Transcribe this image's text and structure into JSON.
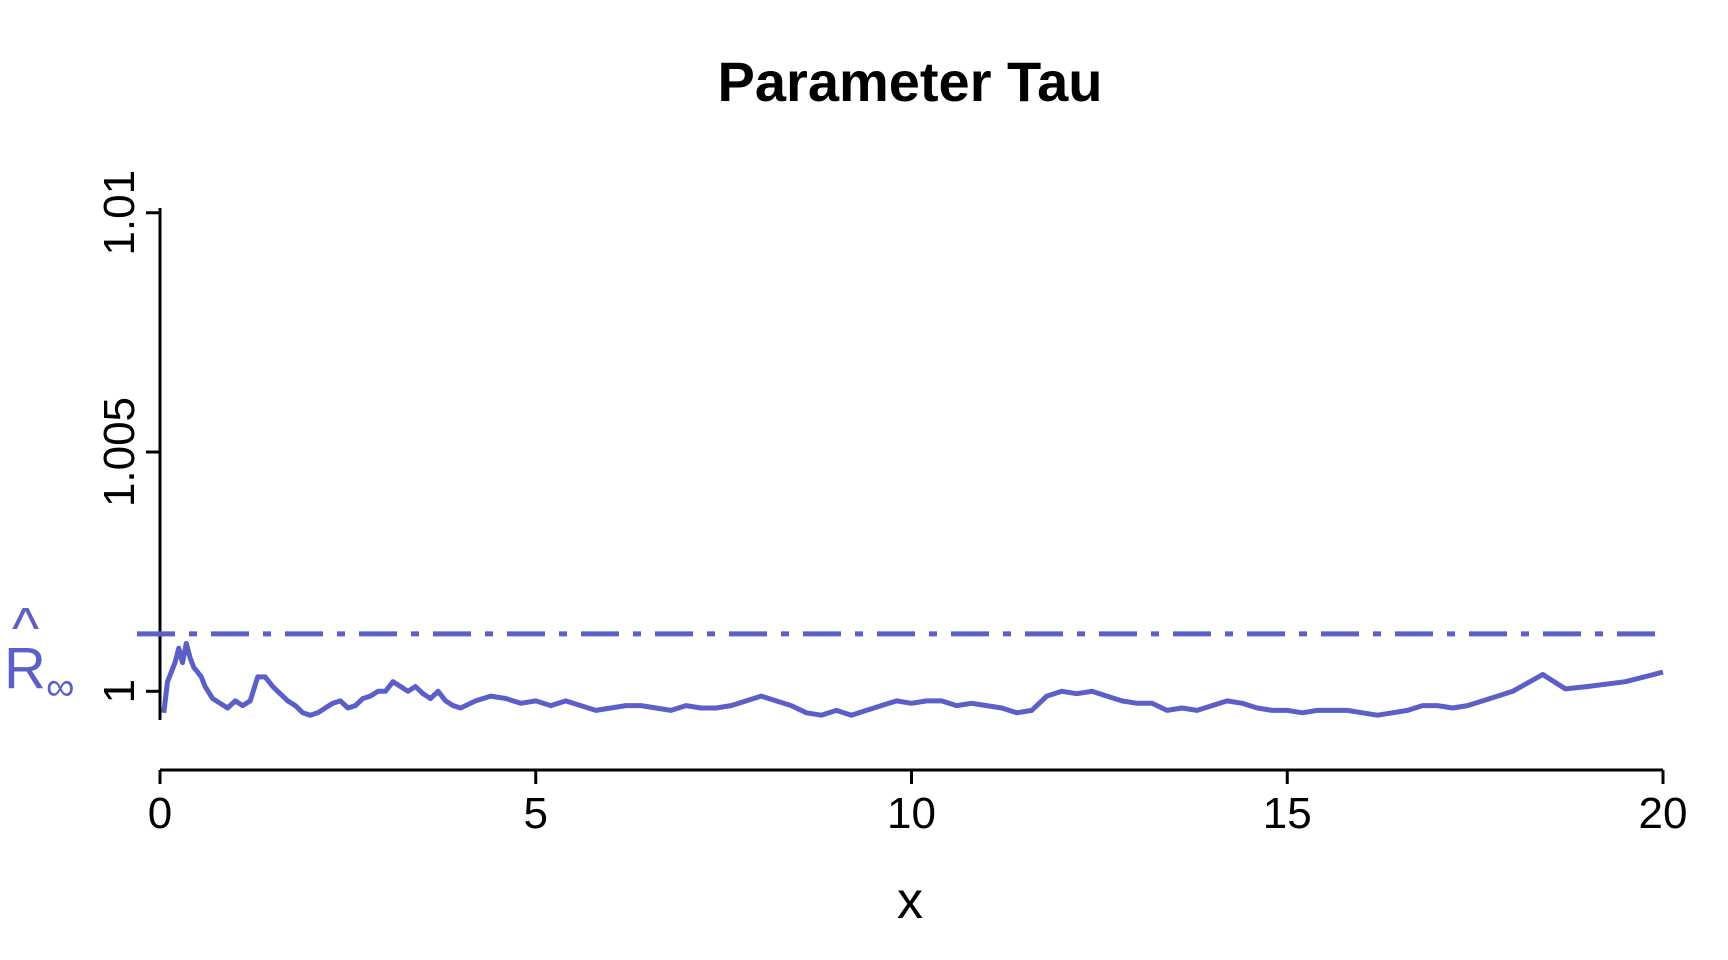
{
  "chart_data": {
    "type": "line",
    "title": "Parameter Tau",
    "xlabel": "x",
    "ylabel": "",
    "xlim": [
      0,
      20
    ],
    "ylim": [
      0.9994,
      1.0101
    ],
    "xticks": [
      0,
      5,
      10,
      15,
      20
    ],
    "xtick_labels": [
      "0",
      "5",
      "10",
      "15",
      "20"
    ],
    "yticks": [
      1.0,
      1.005,
      1.01
    ],
    "ytick_labels": [
      "1",
      "1.005",
      "1.01"
    ],
    "grid": false,
    "color": "#5B5FC7",
    "reference_line": {
      "value": 1.0012,
      "style": "dash-dot",
      "label_main": "R",
      "label_hat": "^",
      "label_sub": "∞"
    },
    "series": [
      {
        "x": [
          0.05,
          0.1,
          0.15,
          0.2,
          0.25,
          0.3,
          0.35,
          0.4,
          0.45,
          0.5,
          0.55,
          0.6,
          0.7,
          0.8,
          0.9,
          1.0,
          1.1,
          1.2,
          1.3,
          1.4,
          1.5,
          1.6,
          1.7,
          1.8,
          1.9,
          2.0,
          2.1,
          2.2,
          2.3,
          2.4,
          2.5,
          2.6,
          2.7,
          2.8,
          2.9,
          3.0,
          3.1,
          3.2,
          3.3,
          3.4,
          3.5,
          3.6,
          3.7,
          3.8,
          3.9,
          4.0,
          4.2,
          4.4,
          4.6,
          4.8,
          5.0,
          5.2,
          5.4,
          5.6,
          5.8,
          6.0,
          6.2,
          6.4,
          6.6,
          6.8,
          7.0,
          7.2,
          7.4,
          7.6,
          7.8,
          8.0,
          8.2,
          8.4,
          8.6,
          8.8,
          9.0,
          9.2,
          9.4,
          9.6,
          9.8,
          10.0,
          10.2,
          10.4,
          10.6,
          10.8,
          11.0,
          11.2,
          11.4,
          11.6,
          11.8,
          12.0,
          12.2,
          12.4,
          12.6,
          12.8,
          13.0,
          13.2,
          13.4,
          13.6,
          13.8,
          14.0,
          14.2,
          14.4,
          14.6,
          14.8,
          15.0,
          15.2,
          15.4,
          15.6,
          15.8,
          16.0,
          16.2,
          16.4,
          16.6,
          16.8,
          17.0,
          17.2,
          17.4,
          17.6,
          17.8,
          18.0,
          18.4,
          18.7,
          19.0,
          19.5,
          20.0
        ],
        "y": [
          0.99955,
          1.0002,
          1.0004,
          1.0006,
          1.0009,
          1.0006,
          1.001,
          1.0007,
          1.0005,
          1.0004,
          1.0003,
          1.0001,
          0.99985,
          0.99975,
          0.99965,
          0.9998,
          0.9997,
          0.9998,
          1.0003,
          1.0003,
          1.0001,
          0.99995,
          0.9998,
          0.9997,
          0.99955,
          0.9995,
          0.99955,
          0.99965,
          0.99975,
          0.9998,
          0.99965,
          0.9997,
          0.99985,
          0.9999,
          1.0,
          1.0,
          1.0002,
          1.0001,
          1.0,
          1.0001,
          0.99995,
          0.99985,
          1.0,
          0.9998,
          0.9997,
          0.99965,
          0.9998,
          0.9999,
          0.99985,
          0.99975,
          0.9998,
          0.9997,
          0.9998,
          0.9997,
          0.9996,
          0.99965,
          0.9997,
          0.9997,
          0.99965,
          0.9996,
          0.9997,
          0.99965,
          0.99965,
          0.9997,
          0.9998,
          0.9999,
          0.9998,
          0.9997,
          0.99955,
          0.9995,
          0.9996,
          0.9995,
          0.9996,
          0.9997,
          0.9998,
          0.99975,
          0.9998,
          0.9998,
          0.9997,
          0.99975,
          0.9997,
          0.99965,
          0.99955,
          0.9996,
          0.9999,
          1.0,
          0.99995,
          1.0,
          0.9999,
          0.9998,
          0.99975,
          0.99975,
          0.9996,
          0.99965,
          0.9996,
          0.9997,
          0.9998,
          0.99975,
          0.99965,
          0.9996,
          0.9996,
          0.99955,
          0.9996,
          0.9996,
          0.9996,
          0.99955,
          0.9995,
          0.99955,
          0.9996,
          0.9997,
          0.9997,
          0.99965,
          0.9997,
          0.9998,
          0.9999,
          1.0,
          1.00035,
          1.00005,
          1.0001,
          1.0002,
          1.0004
        ]
      }
    ]
  }
}
